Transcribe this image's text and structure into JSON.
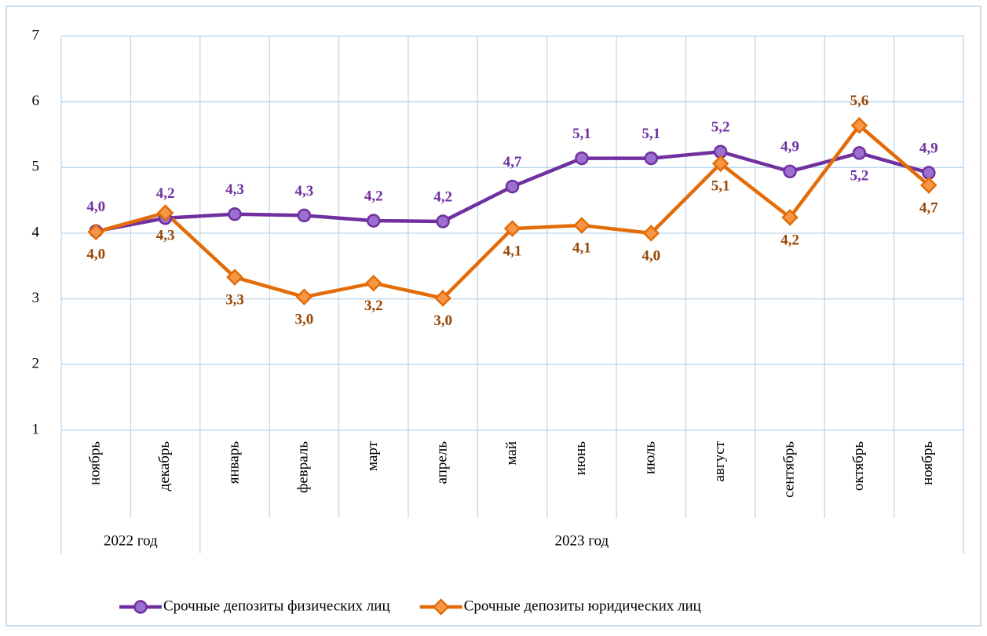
{
  "chart_data": {
    "type": "line",
    "categories": [
      "ноябрь",
      "декабрь",
      "январь",
      "февраль",
      "март",
      "апрель",
      "май",
      "июнь",
      "июль",
      "август",
      "сентябрь",
      "октябрь",
      "ноябрь"
    ],
    "year_groups": [
      {
        "name": "2022 год",
        "count": 2
      },
      {
        "name": "2023 год",
        "count": 11
      }
    ],
    "series": [
      {
        "name": "Срочные депозиты физических лиц",
        "color": "#7030a0",
        "marker": "circle",
        "values": [
          4.03,
          4.23,
          4.29,
          4.27,
          4.19,
          4.18,
          4.71,
          5.14,
          5.14,
          5.24,
          4.94,
          5.22,
          4.92
        ],
        "value_labels": [
          "4,0",
          "4,2",
          "4,3",
          "4,3",
          "4,2",
          "4,2",
          "4,7",
          "5,1",
          "5,1",
          "5,2",
          "4,9",
          "5,2",
          "4,9"
        ],
        "label_positions": [
          "above",
          "above",
          "above",
          "above",
          "above",
          "above",
          "above",
          "above",
          "above",
          "above",
          "above",
          "below",
          "above"
        ]
      },
      {
        "name": "Срочные депозиты юридических лиц",
        "color": "#e36c09",
        "marker": "diamond",
        "values": [
          4.02,
          4.31,
          3.33,
          3.03,
          3.24,
          3.01,
          4.07,
          4.12,
          4.0,
          5.06,
          4.24,
          5.64,
          4.73
        ],
        "value_labels": [
          "4,0",
          "4,3",
          "3,3",
          "3,0",
          "3,2",
          "3,0",
          "4,1",
          "4,1",
          "4,0",
          "5,1",
          "4,2",
          "5,6",
          "4,7"
        ],
        "label_positions": [
          "below",
          "below",
          "below",
          "below",
          "below",
          "below",
          "below",
          "below",
          "below",
          "below",
          "below",
          "above",
          "below"
        ]
      }
    ],
    "ylim": [
      1,
      7
    ],
    "yticks": [
      1,
      2,
      3,
      4,
      5,
      6,
      7
    ],
    "grid": true,
    "legend": "bottom"
  }
}
